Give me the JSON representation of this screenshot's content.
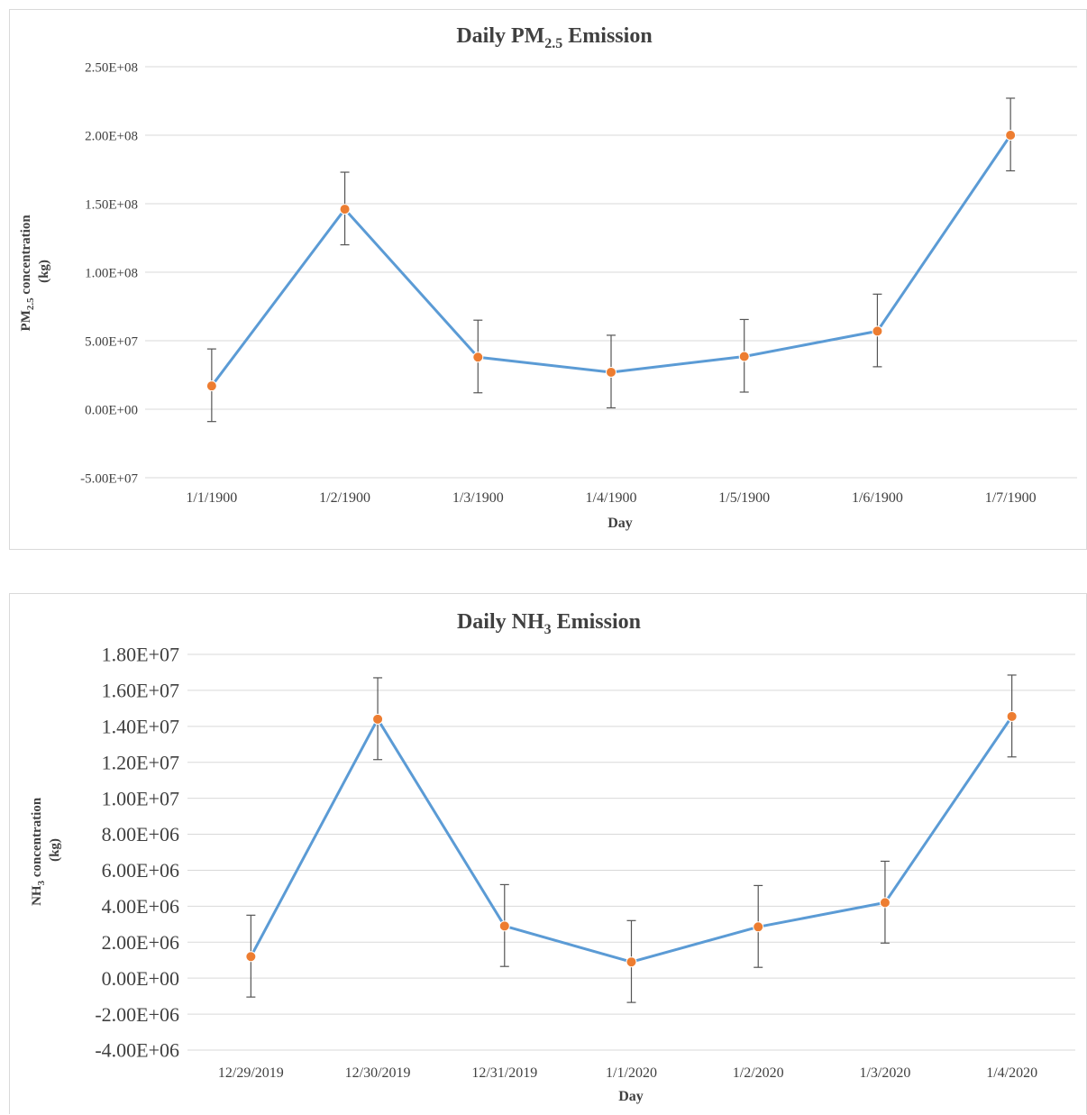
{
  "chart_data": [
    {
      "type": "line",
      "title": "Daily PM",
      "title_sub": "2.5",
      "title_after": " Emission",
      "xlabel": "Day",
      "ylabel_line1": "PM",
      "ylabel_sub": "2.5",
      "ylabel_line1_after": " concentration",
      "ylabel_line2": "(kg)",
      "categories": [
        "1/1/1900",
        "1/2/1900",
        "1/3/1900",
        "1/4/1900",
        "1/5/1900",
        "1/6/1900",
        "1/7/1900"
      ],
      "values": [
        17000000,
        146000000,
        38000000,
        27000000,
        38500000,
        57000000,
        200000000
      ],
      "error_plus": [
        27000000,
        27000000,
        27000000,
        27000000,
        27000000,
        27000000,
        27000000
      ],
      "error_minus": [
        26000000,
        26000000,
        26000000,
        26000000,
        26000000,
        26000000,
        26000000
      ],
      "ylim": [
        -50000000,
        250000000
      ],
      "yticks": [
        250000000,
        200000000,
        150000000,
        100000000,
        50000000,
        0,
        -50000000
      ],
      "ytick_labels": [
        "2.50E+08",
        "2.00E+08",
        "1.50E+08",
        "1.00E+08",
        "5.00E+07",
        "0.00E+00",
        "-5.00E+07"
      ],
      "grid": true,
      "line_color": "#5b9bd5",
      "marker_color": "#ed7d31"
    },
    {
      "type": "line",
      "title": "Daily NH",
      "title_sub": "3",
      "title_after": " Emission",
      "xlabel": "Day",
      "ylabel_line1": "NH",
      "ylabel_sub": "3",
      "ylabel_line1_after": " concentration",
      "ylabel_line2": "(kg)",
      "categories": [
        "12/29/2019",
        "12/30/2019",
        "12/31/2019",
        "1/1/2020",
        "1/2/2020",
        "1/3/2020",
        "1/4/2020"
      ],
      "values": [
        1200000,
        14400000,
        2900000,
        900000,
        2850000,
        4200000,
        14550000
      ],
      "error_plus": [
        2300000,
        2300000,
        2300000,
        2300000,
        2300000,
        2300000,
        2300000
      ],
      "error_minus": [
        2250000,
        2250000,
        2250000,
        2250000,
        2250000,
        2250000,
        2250000
      ],
      "ylim": [
        -4000000,
        18000000
      ],
      "yticks": [
        18000000,
        16000000,
        14000000,
        12000000,
        10000000,
        8000000,
        6000000,
        4000000,
        2000000,
        0,
        -2000000,
        -4000000
      ],
      "ytick_labels": [
        "1.80E+07",
        "1.60E+07",
        "1.40E+07",
        "1.20E+07",
        "1.00E+07",
        "8.00E+06",
        "6.00E+06",
        "4.00E+06",
        "2.00E+06",
        "0.00E+00",
        "-2.00E+06",
        "-4.00E+06"
      ],
      "grid": true,
      "line_color": "#5b9bd5",
      "marker_color": "#ed7d31"
    }
  ]
}
